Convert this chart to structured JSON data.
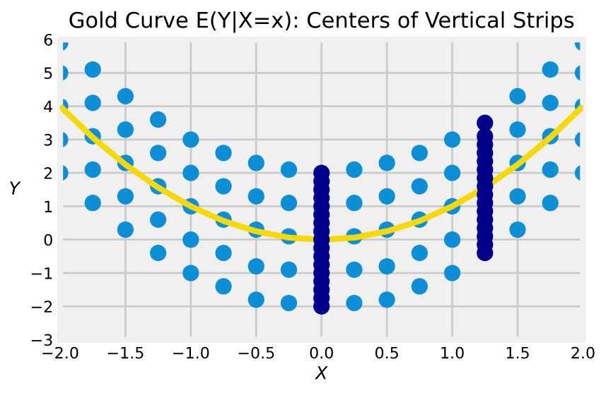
{
  "chart_data": {
    "type": "scatter",
    "title": "Gold Curve E(Y|X=x): Centers of Vertical Strips",
    "xlabel": "X",
    "ylabel": "Y",
    "xlim": [
      -2,
      2
    ],
    "ylim": [
      -3,
      6
    ],
    "xticks": [
      {
        "value": -2,
        "label": "−2.0"
      },
      {
        "value": -1.5,
        "label": "−1.5"
      },
      {
        "value": -1,
        "label": "−1.0"
      },
      {
        "value": -0.5,
        "label": "−0.5"
      },
      {
        "value": 0,
        "label": "0.0"
      },
      {
        "value": 0.5,
        "label": "0.5"
      },
      {
        "value": 1,
        "label": "1.0"
      },
      {
        "value": 1.5,
        "label": "1.5"
      },
      {
        "value": 2,
        "label": "2.0"
      }
    ],
    "yticks": [
      {
        "value": -3,
        "label": "−3"
      },
      {
        "value": -2,
        "label": "−2"
      },
      {
        "value": -1,
        "label": "−1"
      },
      0,
      1,
      2,
      3,
      4,
      5,
      6
    ],
    "grid": true,
    "legend": false,
    "series": [
      {
        "color": "#0d8fd8",
        "marker": "circle",
        "x": [
          -2,
          -2,
          -2,
          -2,
          -2,
          -1.75,
          -1.75,
          -1.75,
          -1.75,
          -1.75,
          -1.5,
          -1.5,
          -1.5,
          -1.5,
          -1.5,
          -1.25,
          -1.25,
          -1.25,
          -1.25,
          -1.25,
          -1,
          -1,
          -1,
          -1,
          -1,
          -0.75,
          -0.75,
          -0.75,
          -0.75,
          -0.75,
          -0.5,
          -0.5,
          -0.5,
          -0.5,
          -0.5,
          -0.25,
          -0.25,
          -0.25,
          -0.25,
          -0.25,
          0.25,
          0.25,
          0.25,
          0.25,
          0.25,
          0.5,
          0.5,
          0.5,
          0.5,
          0.5,
          0.75,
          0.75,
          0.75,
          0.75,
          0.75,
          1,
          1,
          1,
          1,
          1,
          1.5,
          1.5,
          1.5,
          1.5,
          1.5,
          1.75,
          1.75,
          1.75,
          1.75,
          1.75,
          2,
          2,
          2,
          2,
          2
        ],
        "values": [
          2,
          3,
          4,
          5,
          5.9,
          1.1,
          2.1,
          3.1,
          4.1,
          5.1,
          0.3,
          1.3,
          2.3,
          3.3,
          4.3,
          -0.4,
          0.6,
          1.6,
          2.6,
          3.6,
          -1,
          0,
          1,
          2,
          3,
          -1.4,
          -0.4,
          0.6,
          1.6,
          2.6,
          -1.8,
          -0.8,
          0.3,
          1.3,
          2.3,
          -1.9,
          -0.9,
          0.1,
          1.1,
          2.1,
          -1.9,
          -0.9,
          0.1,
          1.1,
          2.1,
          -1.8,
          -0.8,
          0.3,
          1.3,
          2.3,
          -1.4,
          -0.4,
          0.6,
          1.6,
          2.6,
          -1,
          0,
          1,
          2,
          3,
          0.3,
          1.3,
          2.3,
          3.3,
          4.3,
          1.1,
          2.1,
          3.1,
          4.1,
          5.1,
          2,
          3,
          4,
          5,
          5.9
        ]
      },
      {
        "color": "#00008b",
        "marker": "circle",
        "x": [
          0,
          0,
          0,
          0,
          0,
          0,
          0,
          0,
          0,
          0,
          0,
          0,
          0,
          0,
          0,
          0,
          0
        ],
        "values": [
          -2,
          -1.75,
          -1.5,
          -1.25,
          -1,
          -0.75,
          -0.5,
          -0.25,
          0,
          0.25,
          0.5,
          0.75,
          1,
          1.25,
          1.5,
          1.75,
          2
        ]
      },
      {
        "color": "#00008b",
        "marker": "circle",
        "x": [
          1.25,
          1.25,
          1.25,
          1.25,
          1.25,
          1.25,
          1.25,
          1.25,
          1.25,
          1.25,
          1.25,
          1.25,
          1.25,
          1.25,
          1.25,
          1.25
        ],
        "values": [
          -0.4,
          -0.15,
          0.1,
          0.35,
          0.6,
          0.85,
          1.1,
          1.35,
          1.6,
          1.85,
          2.1,
          2.35,
          2.6,
          2.85,
          3.1,
          3.5
        ]
      },
      {
        "type": "line",
        "color": "#f5d90a",
        "marker": "none",
        "x": [
          -2,
          -1.75,
          -1.5,
          -1.25,
          -1,
          -0.75,
          -0.5,
          -0.25,
          0,
          0.25,
          0.5,
          0.75,
          1,
          1.25,
          1.5,
          1.75,
          2
        ],
        "values": [
          4,
          3.06,
          2.25,
          1.56,
          1,
          0.56,
          0.25,
          0.06,
          0,
          0.06,
          0.25,
          0.56,
          1,
          1.56,
          2.25,
          3.06,
          4
        ]
      }
    ]
  }
}
